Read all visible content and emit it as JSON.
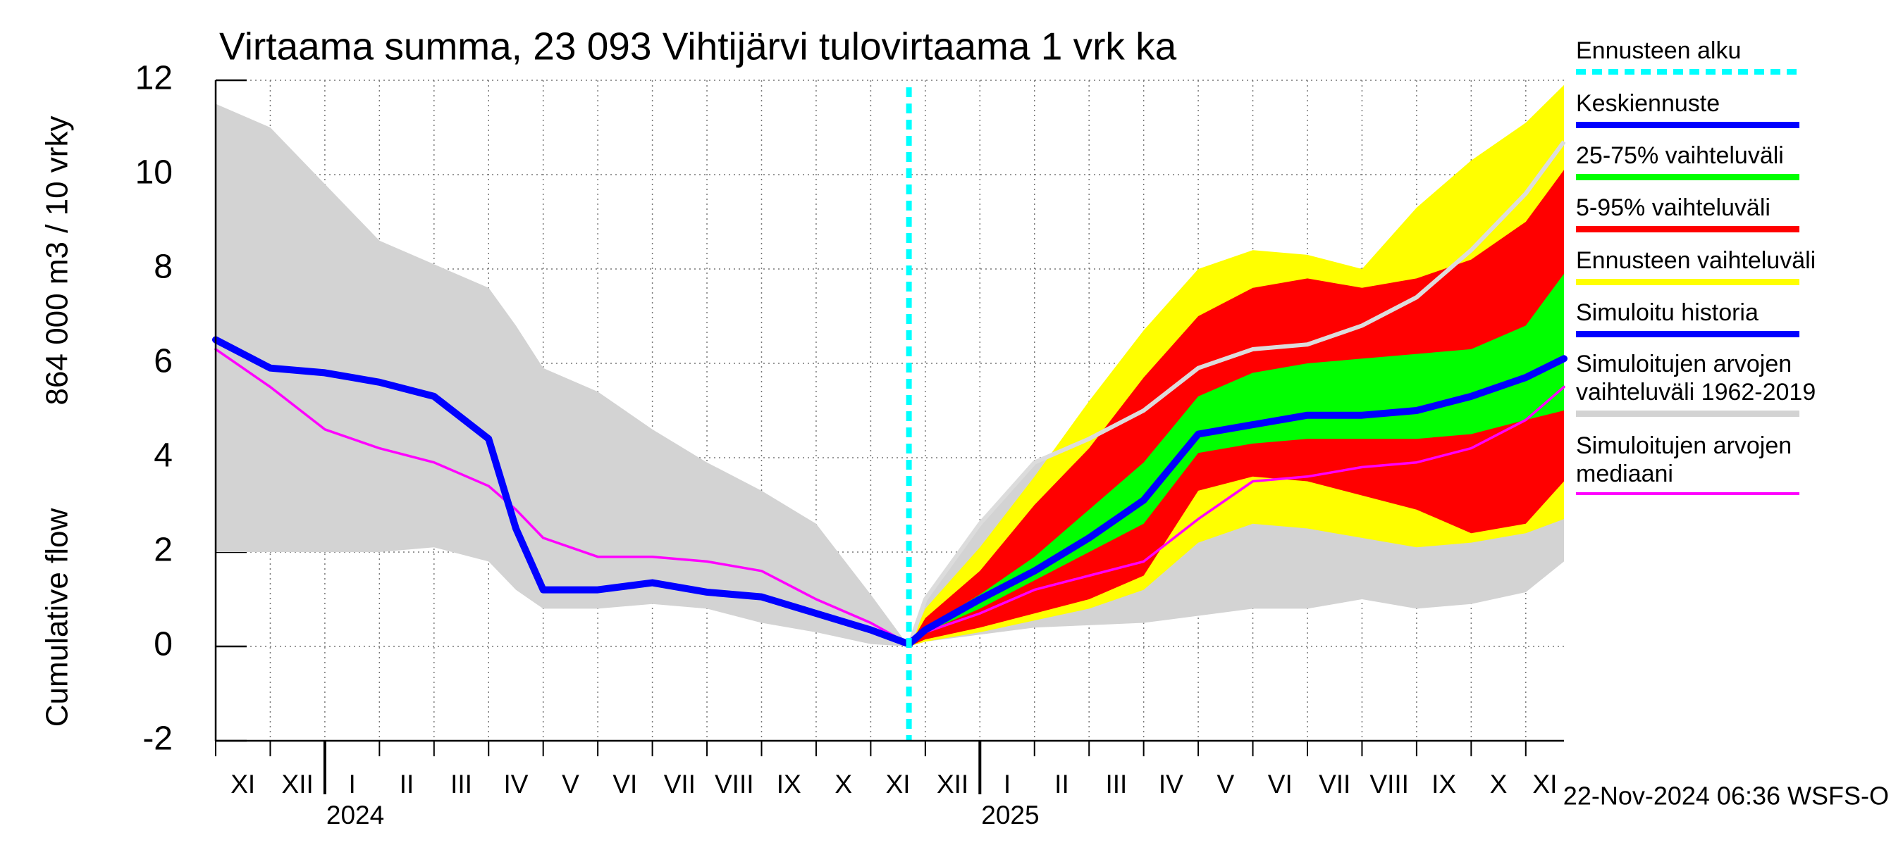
{
  "chart_data": {
    "type": "band-line",
    "title": "Virtaama summa, 23 093 Vihtijärvi tulovirtaama 1 vrk ka",
    "y_label_lines": [
      "Cumulative flow",
      "864 000 m3 / 10 vrky"
    ],
    "footer": "22-Nov-2024 06:36 WSFS-O",
    "ylim": [
      -2,
      12
    ],
    "yticks": [
      -2,
      0,
      2,
      4,
      6,
      8,
      10,
      12
    ],
    "xlim": [
      0,
      24.7
    ],
    "xgrid": [
      0,
      1,
      2,
      3,
      4,
      5,
      6,
      7,
      8,
      9,
      10,
      11,
      12,
      13,
      14,
      15,
      16,
      17,
      18,
      19,
      20,
      21,
      22,
      23,
      24
    ],
    "month_labels": [
      "XI",
      "XII",
      "I",
      "II",
      "III",
      "IV",
      "V",
      "VI",
      "VII",
      "VIII",
      "IX",
      "X",
      "XI",
      "XII",
      "I",
      "II",
      "III",
      "IV",
      "V",
      "VI",
      "VII",
      "VIII",
      "IX",
      "X",
      "XI"
    ],
    "year_ticks": [
      {
        "value": 2,
        "label": "2024"
      },
      {
        "value": 14,
        "label": "2025"
      }
    ],
    "grid": true,
    "forecast_start": {
      "name": "Ennusteen alku",
      "x": 12.7,
      "color": "#00ffff"
    },
    "x": [
      0,
      1,
      2,
      3,
      4,
      5,
      5.5,
      6,
      7,
      8,
      9,
      10,
      11,
      12,
      12.7,
      13,
      14,
      15,
      16,
      17,
      18,
      19,
      20,
      21,
      22,
      23,
      24,
      24.7
    ],
    "series": [
      {
        "name": "Keskiennuste",
        "color": "#0000ff",
        "values": [
          null,
          null,
          null,
          null,
          null,
          null,
          null,
          null,
          null,
          null,
          null,
          null,
          null,
          null,
          0.05,
          0.35,
          1.0,
          1.6,
          2.3,
          3.1,
          4.5,
          4.7,
          4.9,
          4.9,
          5.0,
          5.3,
          5.7,
          6.1
        ]
      },
      {
        "name": "25-75% vaihteluväli",
        "color": "#00ff00",
        "values": [
          null,
          null,
          null,
          null,
          null,
          null,
          null,
          null,
          null,
          null,
          null,
          null,
          null,
          null,
          0,
          0.4,
          1.1,
          1.9,
          2.9,
          3.9,
          5.3,
          5.8,
          6.0,
          6.1,
          6.2,
          6.3,
          6.8,
          7.9
        ],
        "lower": [
          null,
          null,
          null,
          null,
          null,
          null,
          null,
          null,
          null,
          null,
          null,
          null,
          null,
          null,
          0,
          0.3,
          0.8,
          1.4,
          2.0,
          2.6,
          4.1,
          4.3,
          4.4,
          4.4,
          4.4,
          4.5,
          4.8,
          5.0
        ]
      },
      {
        "name": "5-95% vaihteluväli",
        "color": "#ff0000",
        "values": [
          null,
          null,
          null,
          null,
          null,
          null,
          null,
          null,
          null,
          null,
          null,
          null,
          null,
          null,
          0,
          0.6,
          1.6,
          3.0,
          4.2,
          5.7,
          7.0,
          7.6,
          7.8,
          7.6,
          7.8,
          8.2,
          9.0,
          10.1
        ],
        "lower": [
          null,
          null,
          null,
          null,
          null,
          null,
          null,
          null,
          null,
          null,
          null,
          null,
          null,
          null,
          0,
          0.15,
          0.4,
          0.7,
          1.0,
          1.5,
          3.3,
          3.6,
          3.5,
          3.2,
          2.9,
          2.4,
          2.6,
          3.5
        ]
      },
      {
        "name": "Ennusteen vaihteluväli",
        "color": "#ffff00",
        "values": [
          null,
          null,
          null,
          null,
          null,
          null,
          null,
          null,
          null,
          null,
          null,
          null,
          null,
          null,
          0,
          0.8,
          2.1,
          3.6,
          5.2,
          6.7,
          8.0,
          8.4,
          8.3,
          8.0,
          9.3,
          10.3,
          11.1,
          11.9
        ],
        "lower": [
          null,
          null,
          null,
          null,
          null,
          null,
          null,
          null,
          null,
          null,
          null,
          null,
          null,
          null,
          0,
          0.1,
          0.3,
          0.55,
          0.8,
          1.2,
          2.2,
          2.6,
          2.5,
          2.3,
          2.1,
          2.2,
          2.4,
          2.7
        ]
      },
      {
        "name": "Simuloitu historia",
        "color": "#0000ff",
        "values": [
          6.5,
          5.9,
          5.8,
          5.6,
          5.3,
          4.4,
          2.5,
          1.2,
          1.2,
          1.35,
          1.15,
          1.05,
          0.7,
          0.35,
          0.05,
          null,
          null,
          null,
          null,
          null,
          null,
          null,
          null,
          null,
          null,
          null,
          null,
          null
        ]
      },
      {
        "name": "Simuloitujen arvojen vaihteluväli 1962-2019",
        "color": "#d3d3d3",
        "values": [
          11.5,
          11.0,
          9.8,
          8.6,
          8.1,
          7.6,
          6.8,
          5.9,
          5.4,
          4.6,
          3.9,
          3.3,
          2.6,
          1.1,
          0,
          1.0,
          2.6,
          3.9,
          4.4,
          5.0,
          5.9,
          6.3,
          6.4,
          6.8,
          7.4,
          8.4,
          9.6,
          10.7
        ],
        "lower": [
          2.0,
          2.0,
          2.0,
          2.0,
          2.1,
          1.8,
          1.2,
          0.8,
          0.8,
          0.9,
          0.8,
          0.5,
          0.3,
          0.05,
          0,
          0.1,
          0.25,
          0.4,
          0.45,
          0.5,
          0.65,
          0.8,
          0.8,
          1.0,
          0.8,
          0.9,
          1.15,
          1.8
        ]
      },
      {
        "name": "Simuloitujen arvojen mediaani",
        "color": "#ff00ff",
        "values": [
          6.3,
          5.5,
          4.6,
          4.2,
          3.9,
          3.4,
          2.9,
          2.3,
          1.9,
          1.9,
          1.8,
          1.6,
          1.0,
          0.5,
          0.05,
          0.3,
          0.7,
          1.2,
          1.5,
          1.8,
          2.7,
          3.5,
          3.6,
          3.8,
          3.9,
          4.2,
          4.8,
          5.5
        ]
      }
    ]
  }
}
